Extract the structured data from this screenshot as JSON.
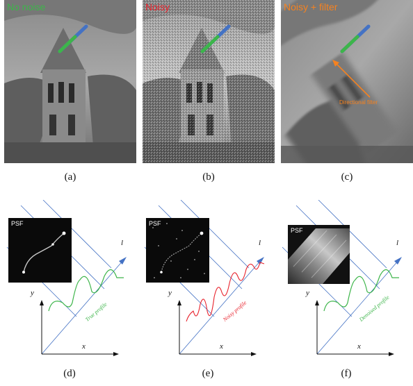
{
  "panels": [
    {
      "title": "No noise",
      "title_color": "#3db54a",
      "label": "(a)"
    },
    {
      "title": "Noisy",
      "title_color": "#e8232d",
      "label": "(b)"
    },
    {
      "title": "Noisy + filter",
      "title_color": "#f58220",
      "label": "(c)",
      "annotation": "Directional filter"
    }
  ],
  "diagrams": [
    {
      "psf_label": "PSF",
      "profile_label": "True profile",
      "profile_color": "#3db54a",
      "label": "(d)",
      "y_axis": "y",
      "x_axis": "x",
      "l_axis": "l"
    },
    {
      "psf_label": "PSF",
      "profile_label": "Noisy profile",
      "profile_color": "#e8232d",
      "label": "(e)",
      "y_axis": "y",
      "x_axis": "x",
      "l_axis": "l"
    },
    {
      "psf_label": "PSF",
      "profile_label": "Denoised profile",
      "profile_color": "#3db54a",
      "label": "(f)",
      "y_axis": "y",
      "x_axis": "x",
      "l_axis": "l"
    }
  ],
  "colors": {
    "kernel_blue": "#4472c4",
    "kernel_green": "#3db54a",
    "axis_blue": "#4472c4"
  }
}
